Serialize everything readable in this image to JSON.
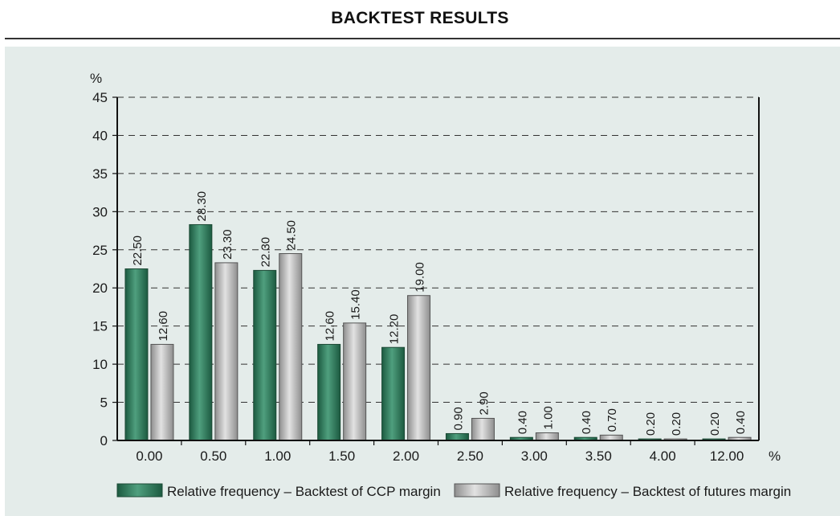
{
  "title": "BACKTEST RESULTS",
  "colors": {
    "series1": "#2f7a5c",
    "series2": "#b8b8b8",
    "panel_bg": "#e4ecea"
  },
  "chart_data": {
    "type": "bar",
    "title": "BACKTEST RESULTS",
    "xlabel": "%",
    "ylabel": "%",
    "ylim": [
      0,
      45
    ],
    "yticks": [
      "0",
      "5",
      "10",
      "15",
      "20",
      "25",
      "30",
      "35",
      "40",
      "45"
    ],
    "grid": "horizontal dashed",
    "legend_position": "bottom",
    "categories": [
      "0.00",
      "0.50",
      "1.00",
      "1.50",
      "2.00",
      "2.50",
      "3.00",
      "3.50",
      "4.00",
      "12.00"
    ],
    "series": [
      {
        "name": "Relative frequency – Backtest of CCP margin",
        "values": [
          22.5,
          28.3,
          22.3,
          12.6,
          12.2,
          0.9,
          0.4,
          0.4,
          0.2,
          0.2
        ],
        "labels": [
          "22.50",
          "28.30",
          "22.30",
          "12.60",
          "12.20",
          "0.90",
          "0.40",
          "0.40",
          "0.20",
          "0.20"
        ]
      },
      {
        "name": "Relative frequency – Backtest of futures margin",
        "values": [
          12.6,
          23.3,
          24.5,
          15.4,
          19.0,
          2.9,
          1.0,
          0.7,
          0.2,
          0.4
        ],
        "labels": [
          "12.60",
          "23.30",
          "24.50",
          "15.40",
          "19.00",
          "2.90",
          "1.00",
          "0.70",
          "0.20",
          "0.40"
        ]
      }
    ]
  }
}
